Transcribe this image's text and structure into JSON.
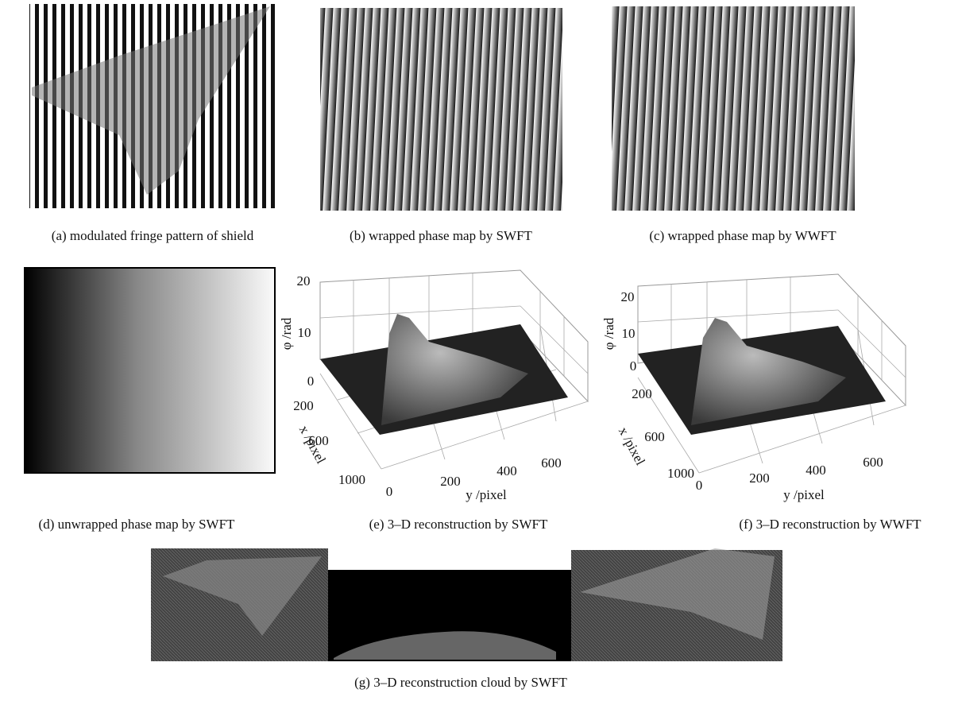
{
  "panels": [
    {
      "caption": "(a) modulated fringe pattern of shield"
    },
    {
      "caption": "(b) wrapped phase map by SWFT"
    },
    {
      "caption": "(c) wrapped phase map by WWFT"
    },
    {
      "caption": "(d) unwrapped phase map by SWFT"
    },
    {
      "caption": "(e) 3–D reconstruction by SWFT",
      "z_label": "φ /rad",
      "x_label": "x /pixel",
      "y_label": "y /pixel",
      "z_ticks": [
        20,
        10,
        0
      ],
      "x_ticks": [
        200,
        600,
        1000
      ],
      "y_ticks": [
        0,
        200,
        400,
        600
      ]
    },
    {
      "caption": "(f) 3–D reconstruction by WWFT",
      "z_label": "φ /rad",
      "x_label": "x /pixel",
      "y_label": "y /pixel",
      "z_ticks": [
        20,
        10,
        0
      ],
      "x_ticks": [
        200,
        600,
        1000
      ],
      "y_ticks": [
        0,
        200,
        400,
        600
      ]
    },
    {
      "caption": "(g) 3–D reconstruction cloud by SWFT"
    }
  ]
}
